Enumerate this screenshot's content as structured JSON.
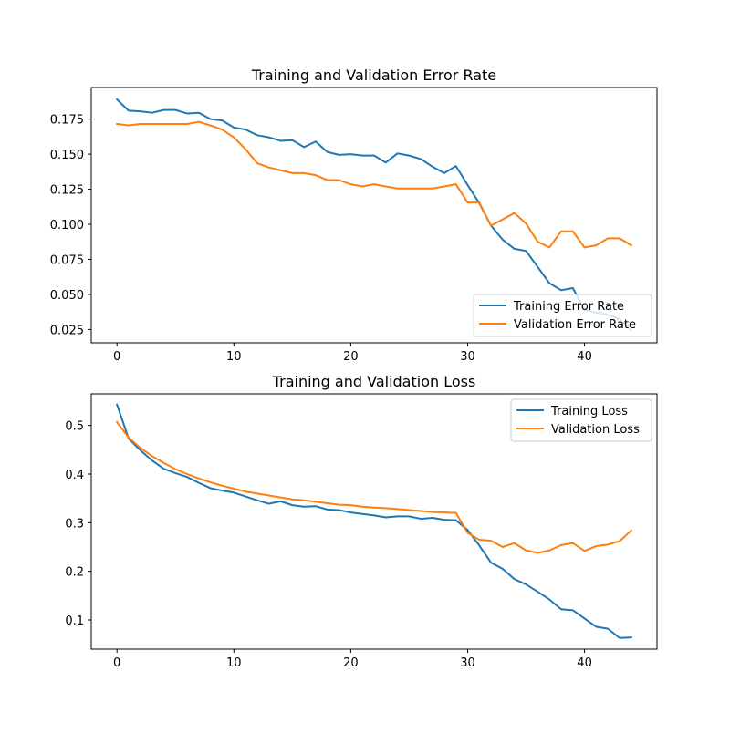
{
  "chart_data": [
    {
      "type": "line",
      "title": "Training and Validation Error Rate",
      "xlabel": "",
      "ylabel": "",
      "xlim": [
        -2.2,
        46.2
      ],
      "ylim": [
        0.0155,
        0.1975
      ],
      "xticks": [
        0,
        10,
        20,
        30,
        40
      ],
      "yticks": [
        0.025,
        0.05,
        0.075,
        0.1,
        0.125,
        0.15,
        0.175
      ],
      "ytick_labels": [
        "0.025",
        "0.050",
        "0.075",
        "0.100",
        "0.125",
        "0.150",
        "0.175"
      ],
      "grid": false,
      "legend_position": "lower right",
      "x": [
        0,
        1,
        2,
        3,
        4,
        5,
        6,
        7,
        8,
        9,
        10,
        11,
        12,
        13,
        14,
        15,
        16,
        17,
        18,
        19,
        20,
        21,
        22,
        23,
        24,
        25,
        26,
        27,
        28,
        29,
        30,
        31,
        32,
        33,
        34,
        35,
        36,
        37,
        38,
        39,
        40,
        41,
        42,
        43,
        44
      ],
      "series": [
        {
          "name": "Training Error Rate",
          "color": "#1f77b4",
          "values": [
            0.189,
            0.181,
            0.1805,
            0.1795,
            0.1815,
            0.1815,
            0.179,
            0.1795,
            0.175,
            0.174,
            0.169,
            0.1675,
            0.1635,
            0.162,
            0.1595,
            0.16,
            0.155,
            0.159,
            0.1515,
            0.1495,
            0.15,
            0.149,
            0.149,
            0.144,
            0.1505,
            0.149,
            0.1465,
            0.141,
            0.1365,
            0.1415,
            0.128,
            0.115,
            0.099,
            0.089,
            0.0825,
            0.081,
            0.0695,
            0.058,
            0.053,
            0.0545,
            0.039,
            0.037,
            0.0355,
            0.0325,
            0.0245
          ]
        },
        {
          "name": "Validation Error Rate",
          "color": "#ff7f0e",
          "values": [
            0.1715,
            0.1705,
            0.1715,
            0.1715,
            0.1715,
            0.1715,
            0.1715,
            0.173,
            0.1705,
            0.1675,
            0.162,
            0.1535,
            0.1435,
            0.1405,
            0.1385,
            0.1365,
            0.1365,
            0.135,
            0.1315,
            0.1315,
            0.1285,
            0.127,
            0.1285,
            0.127,
            0.1255,
            0.1255,
            0.1255,
            0.1255,
            0.127,
            0.1285,
            0.1155,
            0.1155,
            0.099,
            0.1035,
            0.108,
            0.1005,
            0.0875,
            0.0835,
            0.095,
            0.095,
            0.0835,
            0.085,
            0.09,
            0.09,
            0.085
          ]
        }
      ]
    },
    {
      "type": "line",
      "title": "Training and Validation Loss",
      "xlabel": "",
      "ylabel": "",
      "xlim": [
        -2.2,
        46.2
      ],
      "ylim": [
        0.04,
        0.565
      ],
      "xticks": [
        0,
        10,
        20,
        30,
        40
      ],
      "yticks": [
        0.1,
        0.2,
        0.3,
        0.4,
        0.5
      ],
      "ytick_labels": [
        "0.1",
        "0.2",
        "0.3",
        "0.4",
        "0.5"
      ],
      "grid": false,
      "legend_position": "upper right",
      "x": [
        0,
        1,
        2,
        3,
        4,
        5,
        6,
        7,
        8,
        9,
        10,
        11,
        12,
        13,
        14,
        15,
        16,
        17,
        18,
        19,
        20,
        21,
        22,
        23,
        24,
        25,
        26,
        27,
        28,
        29,
        30,
        31,
        32,
        33,
        34,
        35,
        36,
        37,
        38,
        39,
        40,
        41,
        42,
        43,
        44
      ],
      "series": [
        {
          "name": "Training Loss",
          "color": "#1f77b4",
          "values": [
            0.543,
            0.473,
            0.449,
            0.428,
            0.411,
            0.402,
            0.394,
            0.382,
            0.371,
            0.366,
            0.362,
            0.354,
            0.346,
            0.339,
            0.344,
            0.336,
            0.333,
            0.334,
            0.327,
            0.326,
            0.321,
            0.318,
            0.315,
            0.311,
            0.313,
            0.313,
            0.308,
            0.31,
            0.306,
            0.305,
            0.285,
            0.253,
            0.218,
            0.205,
            0.184,
            0.173,
            0.158,
            0.142,
            0.122,
            0.12,
            0.103,
            0.086,
            0.082,
            0.063,
            0.064
          ]
        },
        {
          "name": "Validation Loss",
          "color": "#ff7f0e",
          "values": [
            0.507,
            0.475,
            0.454,
            0.437,
            0.423,
            0.41,
            0.4,
            0.391,
            0.383,
            0.376,
            0.37,
            0.364,
            0.36,
            0.356,
            0.352,
            0.348,
            0.346,
            0.343,
            0.34,
            0.337,
            0.336,
            0.333,
            0.331,
            0.33,
            0.328,
            0.326,
            0.324,
            0.322,
            0.321,
            0.32,
            0.279,
            0.265,
            0.263,
            0.25,
            0.258,
            0.243,
            0.238,
            0.243,
            0.254,
            0.258,
            0.242,
            0.252,
            0.255,
            0.262,
            0.284
          ]
        }
      ]
    }
  ]
}
